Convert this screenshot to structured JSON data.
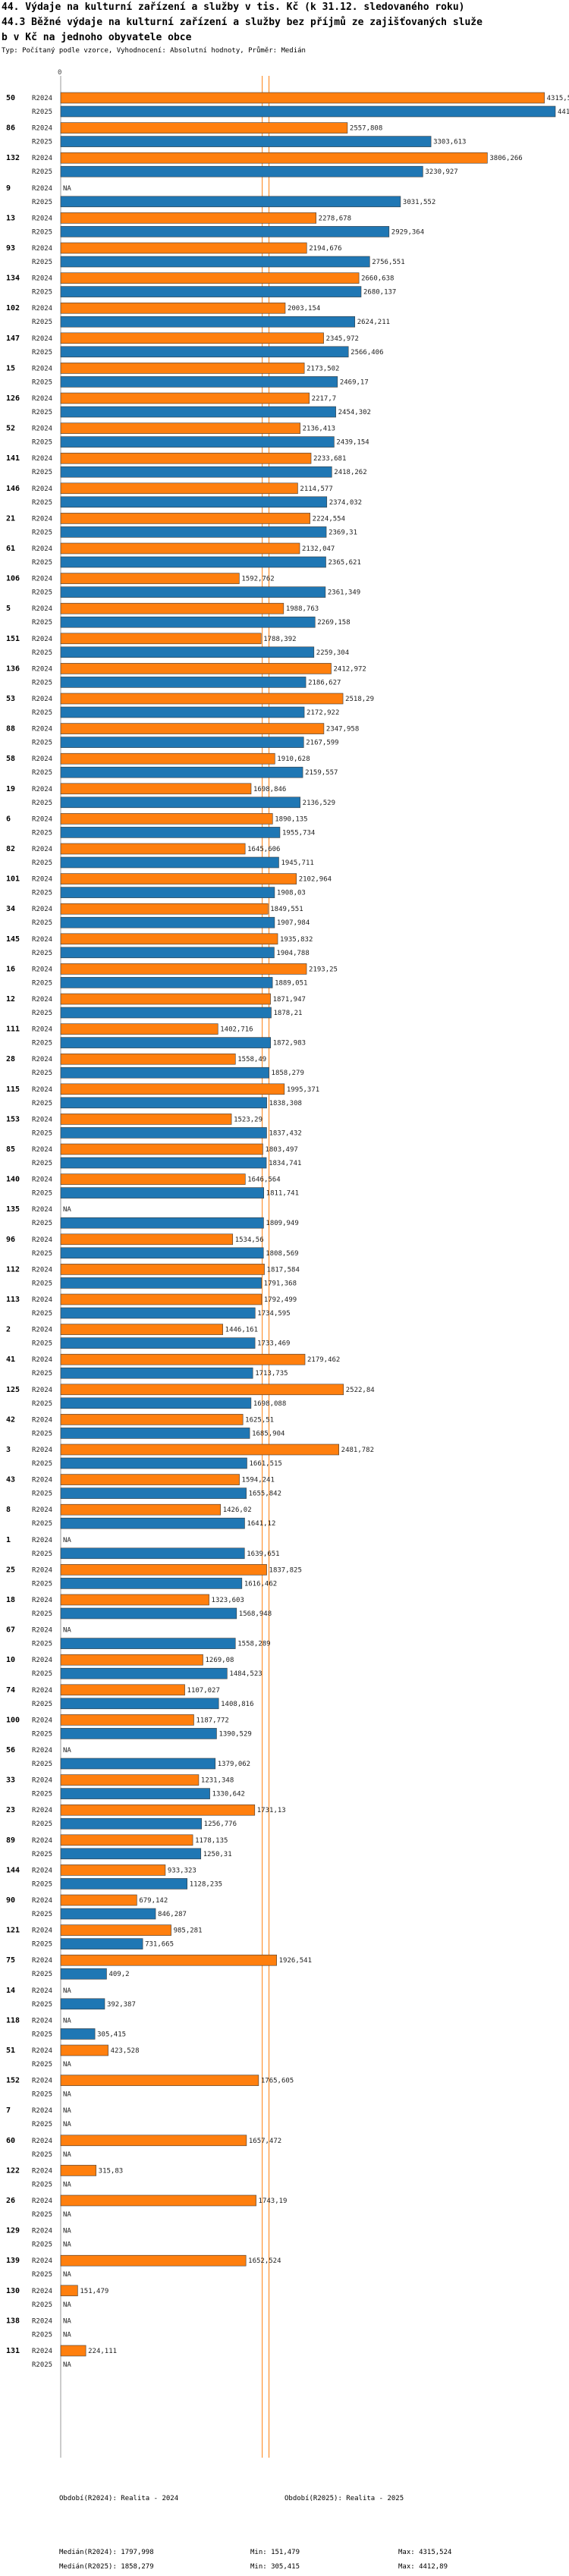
{
  "header": {
    "title_line1": "44. Výdaje na kulturní zařízení a služby v tis. Kč (k 31.12. sledovaného roku)",
    "title_line2": "44.3 Běžné výdaje na kulturní zařízení a služby bez příjmů ze zajišťovaných služe",
    "title_line3": "b v Kč na jednoho obyvatele obce",
    "subtitle": "Typ: Počítaný podle vzorce, Vyhodnocení: Absolutní hodnoty, Průměr: Medián"
  },
  "colors": {
    "r2024": "#ff7f0e",
    "r2025": "#1f77b4",
    "median_line": "#ff7f0e",
    "median_line_2025": "#1f77b4"
  },
  "chart_data": {
    "type": "bar",
    "orientation": "horizontal",
    "title": "44.3 Běžné výdaje na kulturní zařízení a služby bez příjmů ze zajišťovaných služeb v Kč na jednoho obyvatele obce",
    "axis_zero_label": "0",
    "xlim": [
      0,
      4412.89
    ],
    "series_names": [
      "R2024",
      "R2025"
    ],
    "na_label": "NA",
    "medians": {
      "R2024": 1797.998,
      "R2025": 1858.279
    },
    "groups": [
      {
        "id": "50",
        "R2024": 4315.524,
        "R2025": 4412.89
      },
      {
        "id": "86",
        "R2024": 2557.808,
        "R2025": 3303.613
      },
      {
        "id": "132",
        "R2024": 3806.266,
        "R2025": 3230.927
      },
      {
        "id": "9",
        "R2024": null,
        "R2025": 3031.552
      },
      {
        "id": "13",
        "R2024": 2278.678,
        "R2025": 2929.364
      },
      {
        "id": "93",
        "R2024": 2194.676,
        "R2025": 2756.551
      },
      {
        "id": "134",
        "R2024": 2660.638,
        "R2025": 2680.137
      },
      {
        "id": "102",
        "R2024": 2003.154,
        "R2025": 2624.211
      },
      {
        "id": "147",
        "R2024": 2345.972,
        "R2025": 2566.406
      },
      {
        "id": "15",
        "R2024": 2173.502,
        "R2025": 2469.17
      },
      {
        "id": "126",
        "R2024": 2217.7,
        "R2025": 2454.302
      },
      {
        "id": "52",
        "R2024": 2136.413,
        "R2025": 2439.154
      },
      {
        "id": "141",
        "R2024": 2233.681,
        "R2025": 2418.262
      },
      {
        "id": "146",
        "R2024": 2114.577,
        "R2025": 2374.032
      },
      {
        "id": "21",
        "R2024": 2224.554,
        "R2025": 2369.31
      },
      {
        "id": "61",
        "R2024": 2132.047,
        "R2025": 2365.621
      },
      {
        "id": "106",
        "R2024": 1592.762,
        "R2025": 2361.349
      },
      {
        "id": "5",
        "R2024": 1988.763,
        "R2025": 2269.158
      },
      {
        "id": "151",
        "R2024": 1788.392,
        "R2025": 2259.304
      },
      {
        "id": "136",
        "R2024": 2412.972,
        "R2025": 2186.627
      },
      {
        "id": "53",
        "R2024": 2518.29,
        "R2025": 2172.922
      },
      {
        "id": "88",
        "R2024": 2347.958,
        "R2025": 2167.599
      },
      {
        "id": "58",
        "R2024": 1910.628,
        "R2025": 2159.557
      },
      {
        "id": "19",
        "R2024": 1698.846,
        "R2025": 2136.529
      },
      {
        "id": "6",
        "R2024": 1890.135,
        "R2025": 1955.734
      },
      {
        "id": "82",
        "R2024": 1645.606,
        "R2025": 1945.711
      },
      {
        "id": "101",
        "R2024": 2102.964,
        "R2025": 1908.03
      },
      {
        "id": "34",
        "R2024": 1849.551,
        "R2025": 1907.984
      },
      {
        "id": "145",
        "R2024": 1935.832,
        "R2025": 1904.788
      },
      {
        "id": "16",
        "R2024": 2193.25,
        "R2025": 1889.051
      },
      {
        "id": "12",
        "R2024": 1871.947,
        "R2025": 1878.21
      },
      {
        "id": "111",
        "R2024": 1402.716,
        "R2025": 1872.983
      },
      {
        "id": "28",
        "R2024": 1558.49,
        "R2025": 1858.279
      },
      {
        "id": "115",
        "R2024": 1995.371,
        "R2025": 1838.308
      },
      {
        "id": "153",
        "R2024": 1523.29,
        "R2025": 1837.432
      },
      {
        "id": "85",
        "R2024": 1803.497,
        "R2025": 1834.741
      },
      {
        "id": "140",
        "R2024": 1646.564,
        "R2025": 1811.741
      },
      {
        "id": "135",
        "R2024": null,
        "R2025": 1809.949
      },
      {
        "id": "96",
        "R2024": 1534.56,
        "R2025": 1808.569
      },
      {
        "id": "112",
        "R2024": 1817.584,
        "R2025": 1791.368
      },
      {
        "id": "113",
        "R2024": 1792.499,
        "R2025": 1734.595
      },
      {
        "id": "2",
        "R2024": 1446.161,
        "R2025": 1733.469
      },
      {
        "id": "41",
        "R2024": 2179.462,
        "R2025": 1713.735
      },
      {
        "id": "125",
        "R2024": 2522.84,
        "R2025": 1698.088
      },
      {
        "id": "42",
        "R2024": 1625.51,
        "R2025": 1685.904
      },
      {
        "id": "3",
        "R2024": 2481.782,
        "R2025": 1661.515
      },
      {
        "id": "43",
        "R2024": 1594.241,
        "R2025": 1655.842
      },
      {
        "id": "8",
        "R2024": 1426.02,
        "R2025": 1641.12
      },
      {
        "id": "1",
        "R2024": null,
        "R2025": 1639.651
      },
      {
        "id": "25",
        "R2024": 1837.825,
        "R2025": 1616.462
      },
      {
        "id": "18",
        "R2024": 1323.603,
        "R2025": 1568.948
      },
      {
        "id": "67",
        "R2024": null,
        "R2025": 1558.289
      },
      {
        "id": "10",
        "R2024": 1269.08,
        "R2025": 1484.523
      },
      {
        "id": "74",
        "R2024": 1107.027,
        "R2025": 1408.816
      },
      {
        "id": "100",
        "R2024": 1187.772,
        "R2025": 1390.529
      },
      {
        "id": "56",
        "R2024": null,
        "R2025": 1379.062
      },
      {
        "id": "33",
        "R2024": 1231.348,
        "R2025": 1330.642
      },
      {
        "id": "23",
        "R2024": 1731.13,
        "R2025": 1256.776
      },
      {
        "id": "89",
        "R2024": 1178.135,
        "R2025": 1250.31
      },
      {
        "id": "144",
        "R2024": 933.323,
        "R2025": 1128.235
      },
      {
        "id": "90",
        "R2024": 679.142,
        "R2025": 846.287
      },
      {
        "id": "121",
        "R2024": 985.281,
        "R2025": 731.665
      },
      {
        "id": "75",
        "R2024": 1926.541,
        "R2025": 409.2
      },
      {
        "id": "14",
        "R2024": null,
        "R2025": 392.387
      },
      {
        "id": "118",
        "R2024": null,
        "R2025": 305.415
      },
      {
        "id": "51",
        "R2024": 423.528,
        "R2025": null
      },
      {
        "id": "152",
        "R2024": 1765.605,
        "R2025": null
      },
      {
        "id": "7",
        "R2024": null,
        "R2025": null
      },
      {
        "id": "60",
        "R2024": 1657.472,
        "R2025": null
      },
      {
        "id": "122",
        "R2024": 315.83,
        "R2025": null
      },
      {
        "id": "26",
        "R2024": 1743.19,
        "R2025": null
      },
      {
        "id": "129",
        "R2024": null,
        "R2025": null
      },
      {
        "id": "139",
        "R2024": 1652.524,
        "R2025": null
      },
      {
        "id": "130",
        "R2024": 151.479,
        "R2025": null
      },
      {
        "id": "138",
        "R2024": null,
        "R2025": null
      },
      {
        "id": "131",
        "R2024": 224.111,
        "R2025": null
      }
    ]
  },
  "footer": {
    "period_2024": "Období(R2024): Realita - 2024",
    "period_2025": "Období(R2025): Realita - 2025",
    "median_2024": "Medián(R2024): 1797,998",
    "median_2025": "Medián(R2025): 1858,279",
    "min_2024": "Min: 151,479",
    "min_2025": "Min: 305,415",
    "max_2024": "Max: 4315,524",
    "max_2025": "Max: 4412,89"
  }
}
